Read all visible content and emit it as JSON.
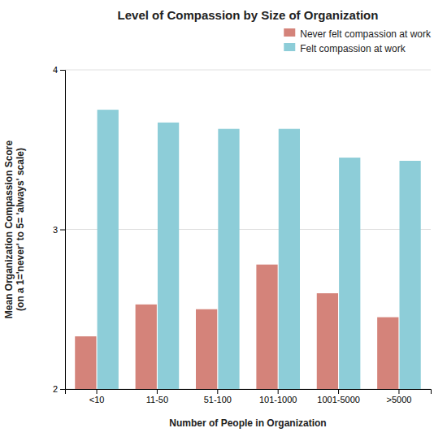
{
  "chart_data": {
    "type": "bar",
    "title": "Level of Compassion by Size of Organization",
    "xlabel": "Number of People in Organization",
    "ylabel": "Mean Organization Compassion Score\n(on a 1='never' to 5= 'always' scale)",
    "categories": [
      "<10",
      "11-50",
      "51-100",
      "101-1000",
      "1001-5000",
      ">5000"
    ],
    "series": [
      {
        "name": "Never felt compassion at work",
        "color": "#d4837a",
        "values": [
          2.33,
          2.53,
          2.5,
          2.78,
          2.6,
          2.45
        ]
      },
      {
        "name": "Felt compassion at work",
        "color": "#8dcdd8",
        "values": [
          3.75,
          3.67,
          3.63,
          3.63,
          3.45,
          3.43
        ]
      }
    ],
    "ylim": [
      2.0,
      4.0
    ],
    "yticks": [
      2,
      3,
      4
    ],
    "grid": true,
    "legend": "upper-right"
  }
}
